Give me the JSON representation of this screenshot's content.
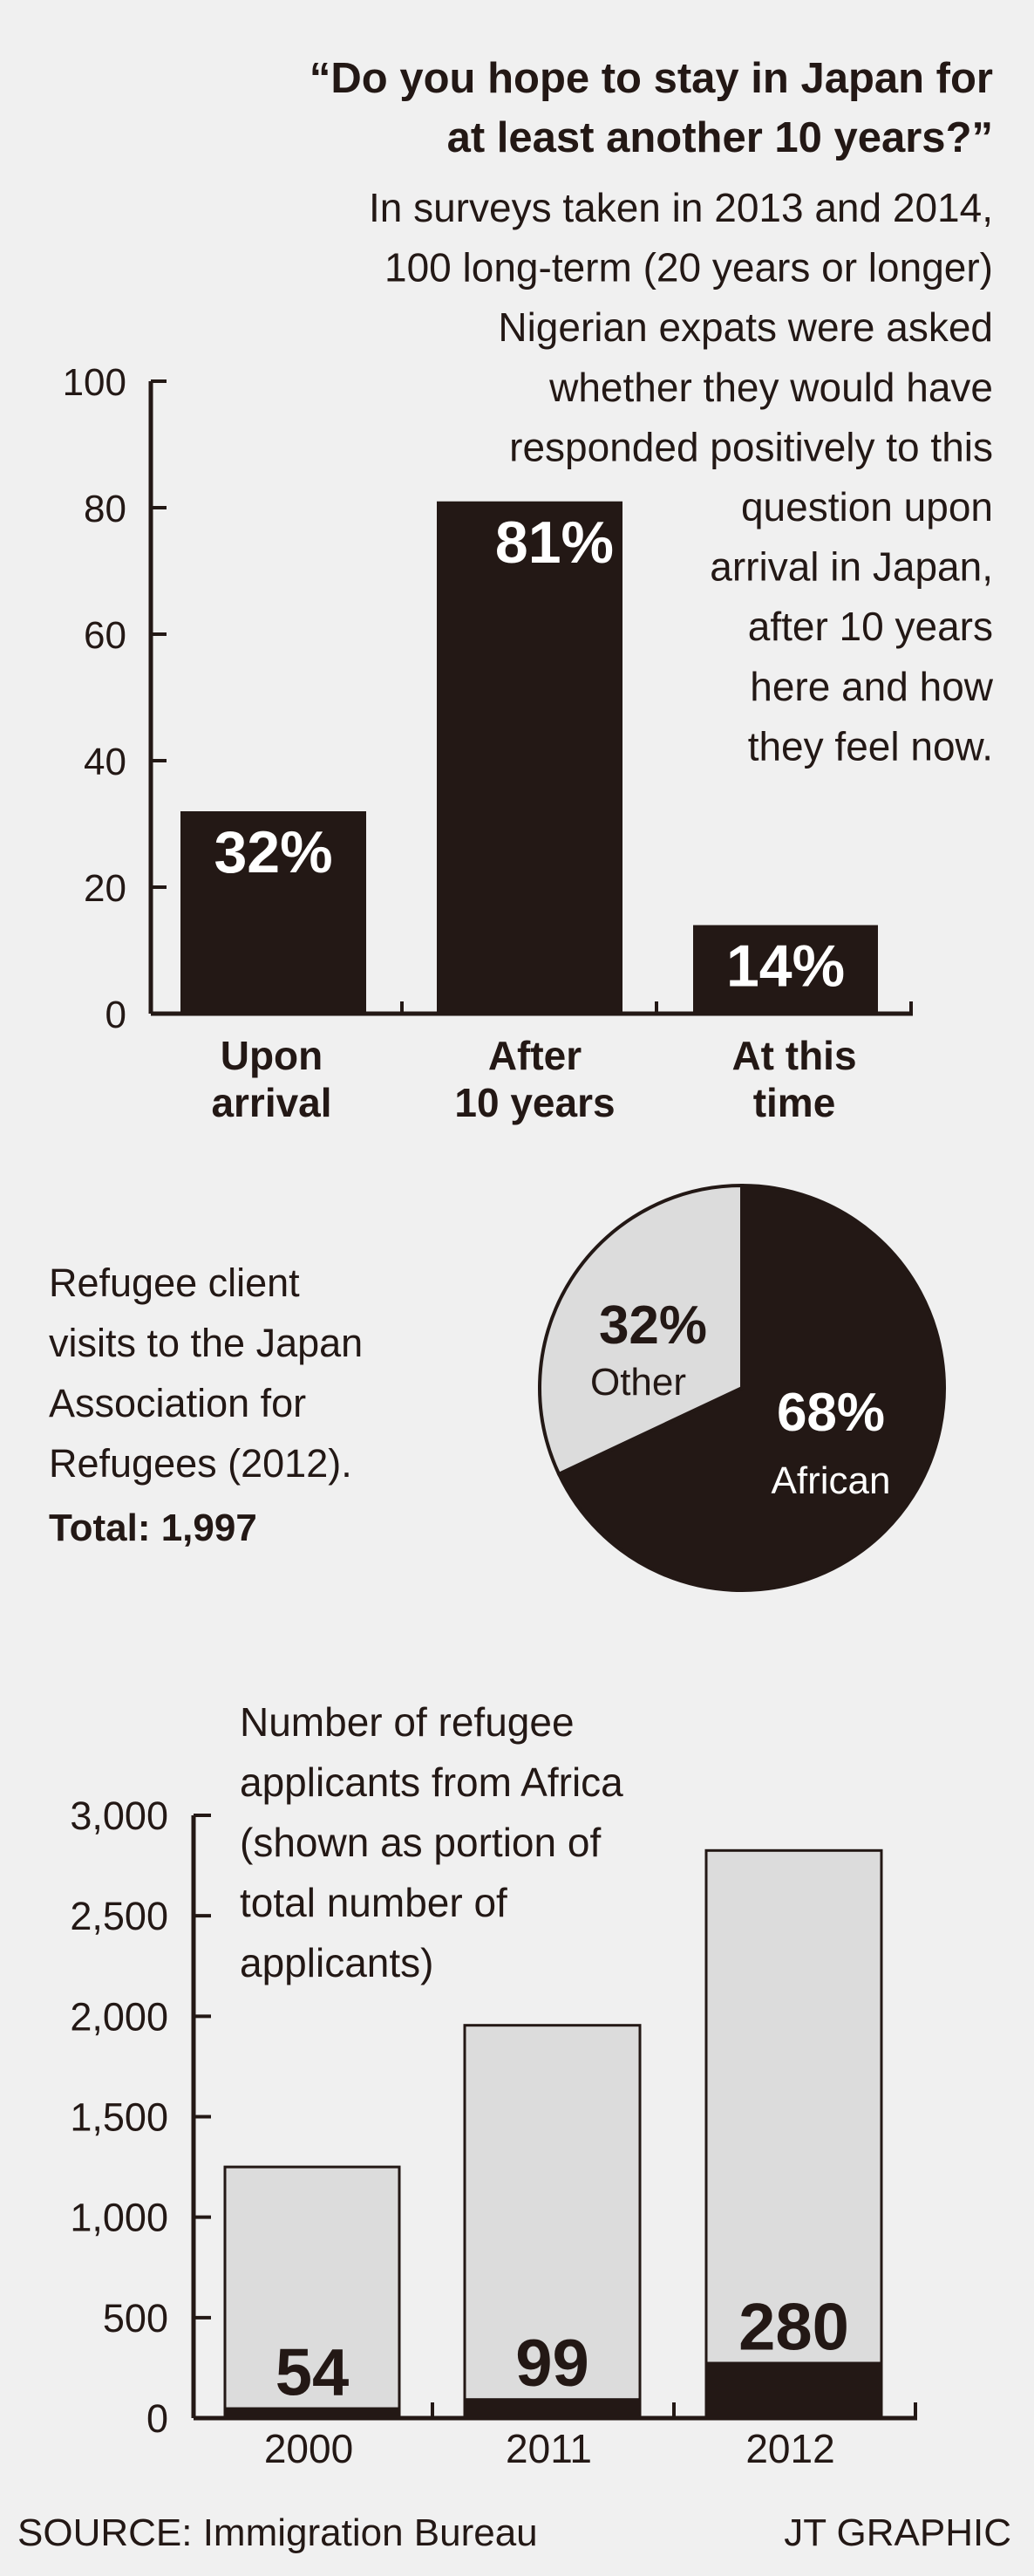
{
  "colors": {
    "background": "#f0f0f0",
    "dark": "#231815",
    "light": "#dcdcdc",
    "white": "#ffffff"
  },
  "chart_data": [
    {
      "type": "bar",
      "title": "“Do you hope to stay in Japan for at least another 10 years?”",
      "title_lines": [
        "“Do you hope to stay in Japan for",
        "at least another 10 years?”"
      ],
      "subtitle_lines": [
        "In surveys taken in 2013 and 2014,",
        "100 long-term (20 years or longer)",
        "Nigerian expats were asked",
        "whether they would have",
        "responded positively to this",
        "question upon",
        "arrival in Japan,",
        "after 10 years",
        "here and how",
        "they feel now."
      ],
      "categories": [
        [
          "Upon",
          "arrival"
        ],
        [
          "After",
          "10 years"
        ],
        [
          "At this",
          "time"
        ]
      ],
      "values": [
        32,
        81,
        14
      ],
      "data_labels": [
        "32%",
        "81%",
        "14%"
      ],
      "yticks": [
        "0",
        "20",
        "40",
        "60",
        "80",
        "100"
      ],
      "ylim": [
        0,
        100
      ],
      "xlabel": "",
      "ylabel": ""
    },
    {
      "type": "pie",
      "title_lines": [
        "Refugee client",
        "visits to the Japan",
        "Association for",
        "Refugees (2012)."
      ],
      "total_label": "Total: 1,997",
      "slices": [
        {
          "name": "African",
          "value": 68,
          "label": "68%"
        },
        {
          "name": "Other",
          "value": 32,
          "label": "32%"
        }
      ]
    },
    {
      "type": "bar",
      "title_lines": [
        "Number of refugee",
        "applicants from Africa",
        "(shown as portion of",
        "total number of",
        "applicants)"
      ],
      "categories": [
        "2000",
        "2011",
        "2012"
      ],
      "series": [
        {
          "name": "Total applicants",
          "values": [
            1250,
            1955,
            2825
          ]
        },
        {
          "name": "From Africa",
          "values": [
            54,
            99,
            280
          ]
        }
      ],
      "data_labels": [
        "54",
        "99",
        "280"
      ],
      "yticks": [
        "0",
        "500",
        "1,000",
        "1,500",
        "2,000",
        "2,500",
        "3,000"
      ],
      "ylim": [
        0,
        3000
      ],
      "xlabel": "",
      "ylabel": ""
    }
  ],
  "footer": {
    "source": "SOURCE: Immigration Bureau",
    "credit": "JT GRAPHIC"
  }
}
